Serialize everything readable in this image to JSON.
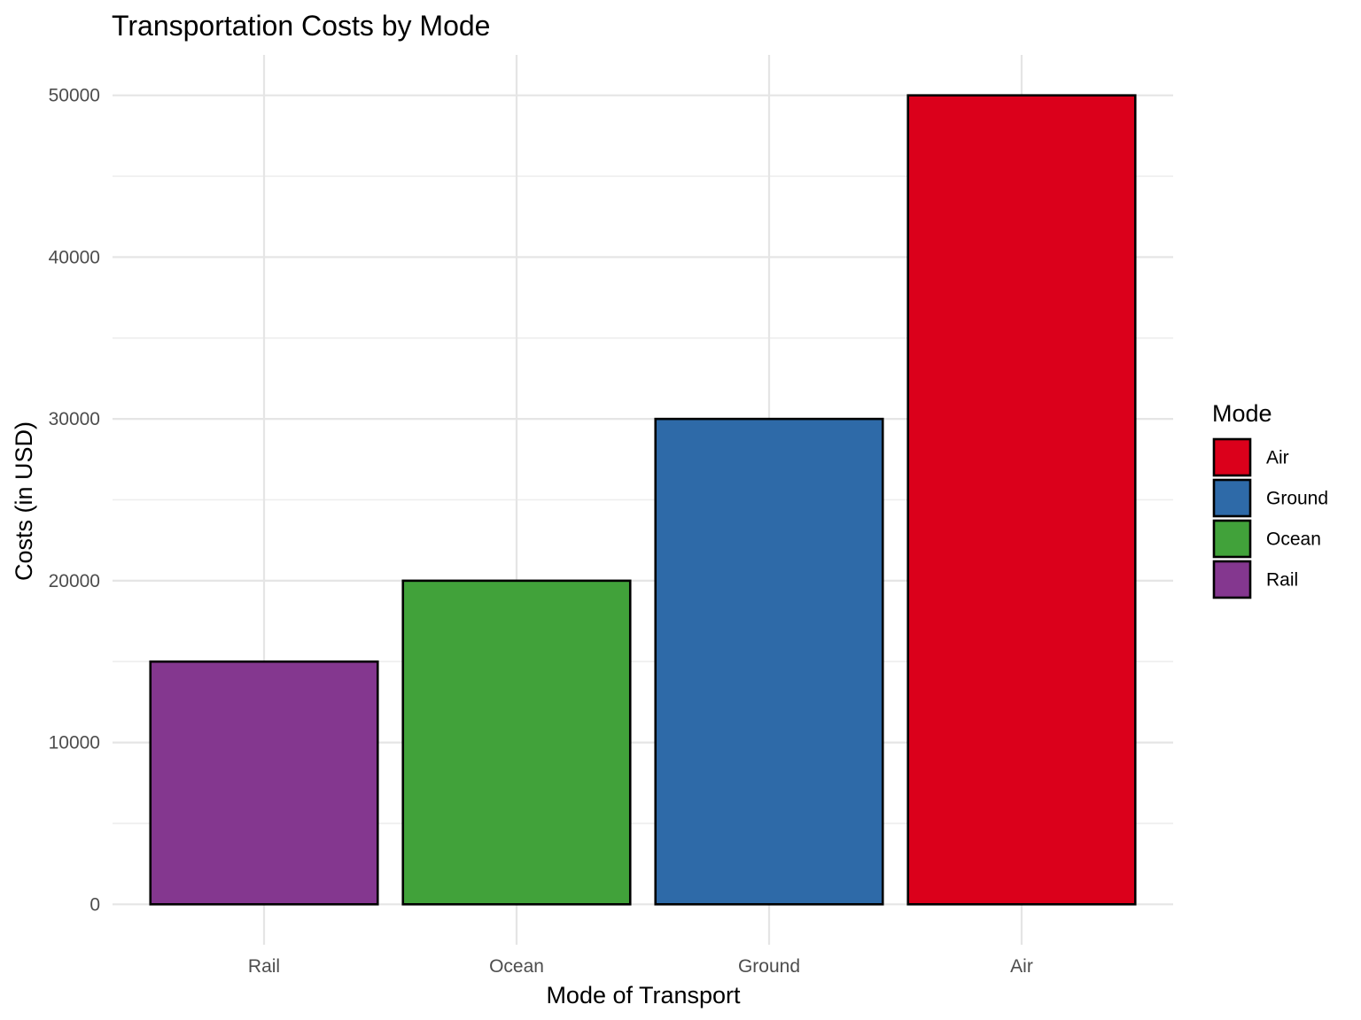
{
  "chart_data": {
    "type": "bar",
    "title": "Transportation Costs by Mode",
    "xlabel": "Mode of Transport",
    "ylabel": "Costs (in USD)",
    "categories": [
      "Rail",
      "Ocean",
      "Ground",
      "Air"
    ],
    "values": [
      15000,
      20000,
      30000,
      50000
    ],
    "bar_colors": [
      "#84378F",
      "#41A23A",
      "#2E6AA8",
      "#DB001B"
    ],
    "ylim": [
      -2500,
      52500
    ],
    "yticks": [
      0,
      10000,
      20000,
      30000,
      40000,
      50000
    ],
    "ytick_labels": [
      "0",
      "10000",
      "20000",
      "30000",
      "40000",
      "50000"
    ],
    "grid": true,
    "legend": {
      "title": "Mode",
      "placement": "right",
      "items": [
        {
          "label": "Air",
          "color": "#DB001B"
        },
        {
          "label": "Ground",
          "color": "#2E6AA8"
        },
        {
          "label": "Ocean",
          "color": "#41A23A"
        },
        {
          "label": "Rail",
          "color": "#84378F"
        }
      ]
    }
  }
}
